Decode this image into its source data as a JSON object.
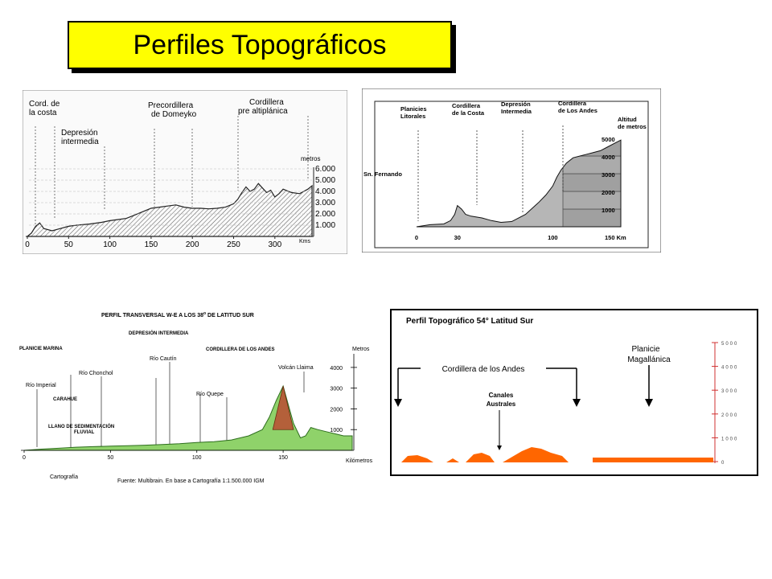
{
  "title": "Perfiles Topográficos",
  "panel1": {
    "labels": {
      "cord_costa_1": "Cord. de",
      "cord_costa_2": "la costa",
      "depresion_1": "Depresión",
      "depresion_2": "intermedia",
      "precord_1": "Precordillera",
      "precord_2": "de Domeyko",
      "cordillera_1": "Cordillera",
      "cordillera_2": "pre altiplánica",
      "metros": "metros",
      "kms": "Kms"
    },
    "chart_data": {
      "type": "area",
      "y_ticks": [
        "6.000",
        "5.000",
        "4.000",
        "3.000",
        "2.000",
        "1.000"
      ],
      "x_ticks": [
        "0",
        "50",
        "100",
        "150",
        "200",
        "250",
        "300"
      ],
      "x": [
        0,
        5,
        10,
        15,
        20,
        30,
        40,
        50,
        60,
        75,
        90,
        100,
        110,
        120,
        130,
        140,
        150,
        160,
        170,
        180,
        190,
        200,
        210,
        220,
        230,
        240,
        250,
        255,
        260,
        265,
        270,
        275,
        280,
        285,
        290,
        295,
        300,
        305,
        310,
        320,
        330,
        340,
        345
      ],
      "y": [
        0,
        300,
        900,
        1200,
        700,
        500,
        700,
        900,
        1000,
        1100,
        1250,
        1400,
        1500,
        1600,
        1900,
        2200,
        2500,
        2600,
        2700,
        2800,
        2600,
        2500,
        2500,
        2450,
        2500,
        2600,
        2900,
        3300,
        3900,
        4400,
        4000,
        4200,
        4700,
        4300,
        3900,
        4100,
        3500,
        3800,
        4200,
        3900,
        3800,
        4200,
        4500
      ],
      "xlim": [
        0,
        345
      ],
      "ylim": [
        0,
        6000
      ]
    }
  },
  "panel2": {
    "labels": {
      "planicies_1": "Planicies",
      "planicies_2": "Litorales",
      "cord_costa_1": "Cordillera",
      "cord_costa_2": "de la Costa",
      "depresion_1": "Depresión",
      "depresion_2": "Intermedia",
      "cord_andes_1": "Cordillera",
      "cord_andes_2": "de Los Andes",
      "altitud_1": "Altitud",
      "altitud_2": "de metros",
      "fernando": "Sn. Fernando",
      "km": "150 Km"
    },
    "chart_data": {
      "type": "area",
      "y_ticks": [
        "5000",
        "4000",
        "3000",
        "2000",
        "1000"
      ],
      "x_ticks": [
        "0",
        "30",
        "100"
      ],
      "x": [
        0,
        10,
        20,
        25,
        28,
        30,
        33,
        36,
        40,
        48,
        55,
        62,
        70,
        80,
        90,
        95,
        100,
        103,
        106,
        110,
        115,
        120,
        125,
        130,
        135,
        140,
        145,
        150
      ],
      "y": [
        0,
        120,
        160,
        350,
        700,
        1200,
        1000,
        700,
        600,
        500,
        350,
        250,
        300,
        700,
        1400,
        1800,
        2300,
        2800,
        3200,
        3600,
        3900,
        4000,
        4100,
        4200,
        4300,
        4500,
        4700,
        4900
      ],
      "xlim": [
        0,
        150
      ],
      "ylim": [
        0,
        5000
      ]
    }
  },
  "panel3": {
    "labels": {
      "title_main": "PERFIL TRANSVERSAL W-E A LOS 38",
      "title_deg": "o",
      "title_end": " DE LATITUD SUR",
      "depresion": "DEPRESIÓN INTERMEDIA",
      "planicie": "PLANICIE MARINA",
      "cordillera": "CORDILLERA DE LOS ANDES",
      "metros": "Metros",
      "rio_cautin": "Río Cautín",
      "rio_chanchol": "Río Chonchol",
      "rio_imperial": "Río Imperial",
      "carahue": "CARAHUE",
      "volcan": "Volcán Llaima",
      "rio_quepe": "Río Quepe",
      "llano_1": "LLANO DE SEDIMENTACIÓN",
      "llano_2": "FLUVIAL",
      "kilometros": "Kilómetros",
      "cartografia": "Cartografía",
      "fuente": "Fuente: Multibrain. En base a Cartografía 1:1.500.000 IGM"
    },
    "chart_data": {
      "type": "area",
      "y_ticks": [
        "4000",
        "3000",
        "2000",
        "1000"
      ],
      "x_ticks": [
        "0",
        "50",
        "100",
        "150"
      ],
      "x": [
        0,
        10,
        20,
        30,
        40,
        50,
        60,
        70,
        80,
        90,
        100,
        110,
        120,
        130,
        138,
        142,
        146,
        150,
        153,
        156,
        160,
        163,
        166,
        170,
        175,
        180,
        185,
        190
      ],
      "y": [
        0,
        60,
        100,
        150,
        180,
        200,
        220,
        250,
        280,
        320,
        380,
        420,
        500,
        700,
        1000,
        1600,
        2400,
        3100,
        2200,
        1300,
        600,
        700,
        1100,
        1000,
        900,
        800,
        700,
        700
      ],
      "xlim": [
        0,
        190
      ],
      "ylim": [
        0,
        4500
      ]
    }
  },
  "panel4": {
    "labels": {
      "title": "Perfil Topográfico 54° Latitud Sur",
      "planicie_1": "Planicie",
      "planicie_2": "Magallánica",
      "cordillera": "Cordillera de los Andes",
      "canales_1": "Canales",
      "canales_2": "Australes"
    },
    "colors": {
      "fill": "#ff6600",
      "axis": "#d03030"
    },
    "chart_data": {
      "type": "area",
      "y_ticks": [
        "5000",
        "4000",
        "3000",
        "2000",
        "1000",
        "0"
      ],
      "ylim": [
        0,
        5000
      ]
    }
  }
}
